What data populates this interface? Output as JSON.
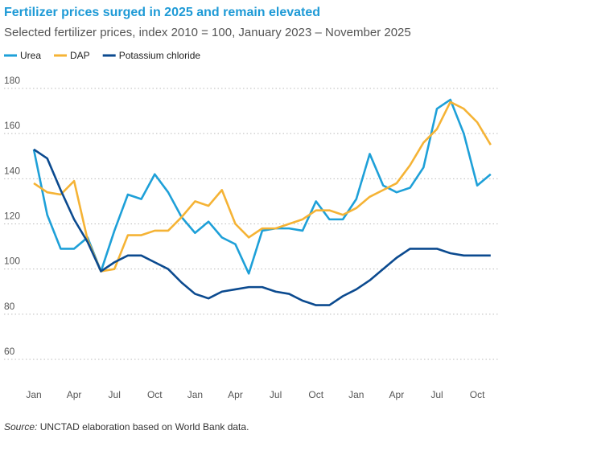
{
  "chart_data": {
    "type": "line",
    "title": "Fertilizer prices surged in 2025 and remain elevated",
    "subtitle": "Selected fertilizer prices, index 2010 = 100, January 2023 – November 2025",
    "source_label": "Source:",
    "source_text": "UNCTAD elaboration based on World Bank data.",
    "categories": [
      "Jan",
      null,
      null,
      "Apr",
      null,
      null,
      "Jul",
      null,
      null,
      "Oct",
      null,
      null,
      "Jan",
      null,
      null,
      "Apr",
      null,
      null,
      "Jul",
      null,
      null,
      "Oct",
      null,
      null,
      "Jan",
      null,
      null,
      "Apr",
      null,
      null,
      "Jul",
      null,
      null,
      "Oct",
      null
    ],
    "series": [
      {
        "name": "Urea",
        "color": "#1ea0d8",
        "values": [
          153,
          124,
          109,
          109,
          114,
          99,
          117,
          133,
          131,
          142,
          134,
          123,
          116,
          121,
          114,
          111,
          98,
          117,
          118,
          118,
          117,
          130,
          122,
          122,
          131,
          151,
          137,
          134,
          136,
          145,
          171,
          175,
          160,
          137,
          142
        ]
      },
      {
        "name": "DAP",
        "color": "#f5b335",
        "values": [
          138,
          134,
          133,
          139,
          113,
          99,
          100,
          115,
          115,
          117,
          117,
          123,
          130,
          128,
          135,
          120,
          114,
          118,
          118,
          120,
          122,
          126,
          126,
          124,
          127,
          132,
          135,
          138,
          146,
          156,
          162,
          174,
          171,
          165,
          155
        ]
      },
      {
        "name": "Potassium chloride",
        "color": "#0b4a8f",
        "values": [
          153,
          149,
          135,
          122,
          112,
          99,
          103,
          106,
          106,
          103,
          100,
          94,
          89,
          87,
          90,
          91,
          92,
          92,
          90,
          89,
          86,
          84,
          84,
          88,
          91,
          95,
          100,
          105,
          109,
          109,
          109,
          107,
          106,
          106,
          106
        ]
      }
    ],
    "ylim": [
      60,
      180
    ],
    "yticks": [
      60,
      80,
      100,
      120,
      140,
      160,
      180
    ],
    "grid": true,
    "legend": "top-left"
  }
}
